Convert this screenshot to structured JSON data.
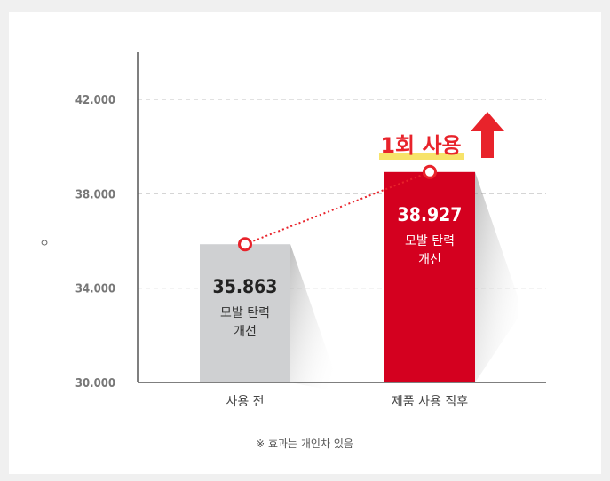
{
  "chart_data": {
    "type": "bar",
    "ylabel": "ㅇ",
    "categories": [
      "사용 전",
      "제품 사용 직후"
    ],
    "values": [
      35.863,
      38.927
    ],
    "value_labels": [
      "35.863",
      "38.927"
    ],
    "bar_captions": [
      [
        "모발 탄력",
        "개선"
      ],
      [
        "모발 탄력",
        "개선"
      ]
    ],
    "bar_colors": [
      "#cfd0d2",
      "#d4001f"
    ],
    "ylim": [
      30,
      44
    ],
    "yticks": [
      30,
      34,
      38,
      42
    ],
    "ytick_labels": [
      "30.000",
      "34.000",
      "38.000",
      "42.000"
    ],
    "grid": true,
    "trend_line": true,
    "annotation": "1회 사용",
    "annotation_color": "#e8232b",
    "highlight_color": "#f7e36a",
    "footnote": "※ 효과는 개인차 있음"
  }
}
